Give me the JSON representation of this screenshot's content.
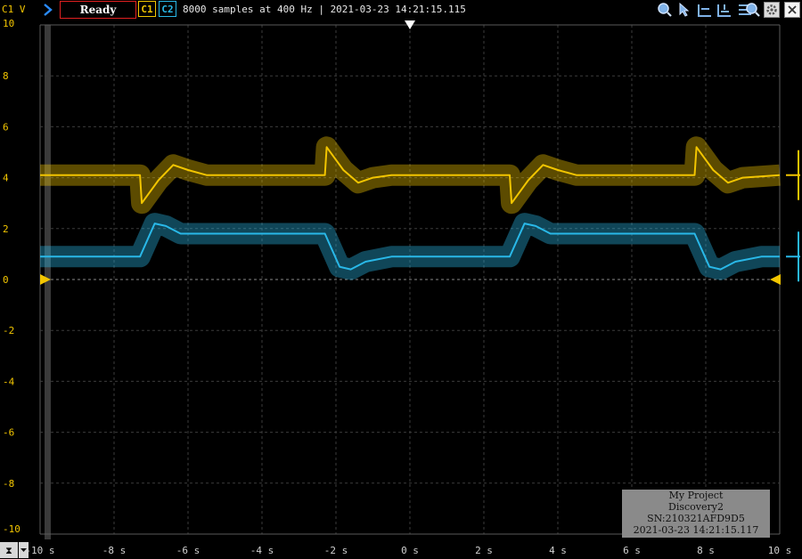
{
  "toolbar": {
    "channel_label": "C1 V",
    "status": "Ready",
    "c1": "C1",
    "c2": "C2",
    "acquisition_info": "8000 samples at 400 Hz | 2021-03-23 14:21:15.115"
  },
  "colors": {
    "c1": "#f2c500",
    "c2": "#29b8e8",
    "grid": "#3c3c3c",
    "status_border": "#e02020"
  },
  "icons": [
    "zoom-icon",
    "cursor-tool-icon",
    "measure-icon",
    "add-measure-icon",
    "list-icon",
    "search-icon",
    "settings-icon",
    "close-icon"
  ],
  "chart_data": {
    "type": "line",
    "x_ticks": [
      "-10 s",
      "-8 s",
      "-6 s",
      "-4 s",
      "-2 s",
      "0 s",
      "2 s",
      "4 s",
      "6 s",
      "8 s",
      "10 s"
    ],
    "y_ticks": [
      "10",
      "8",
      "6",
      "4",
      "2",
      "0",
      "-2",
      "-4",
      "-6",
      "-8",
      "-10"
    ],
    "xlim": [
      -10,
      10
    ],
    "ylim": [
      -10,
      10
    ],
    "grid": true,
    "series": [
      {
        "name": "C1",
        "color": "#f2c500",
        "x": [
          -10,
          -7.3,
          -7.25,
          -6.8,
          -6.4,
          -6.0,
          -5.5,
          -2.3,
          -2.25,
          -1.8,
          -1.4,
          -1.0,
          -0.5,
          2.7,
          2.75,
          3.2,
          3.6,
          4.0,
          4.5,
          7.7,
          7.75,
          8.2,
          8.6,
          9.0,
          10
        ],
        "y": [
          4.1,
          4.1,
          3.0,
          3.9,
          4.5,
          4.3,
          4.1,
          4.1,
          5.2,
          4.3,
          3.8,
          4.0,
          4.1,
          4.1,
          3.0,
          3.9,
          4.5,
          4.3,
          4.1,
          4.1,
          5.2,
          4.3,
          3.8,
          4.0,
          4.1
        ]
      },
      {
        "name": "C2",
        "color": "#29b8e8",
        "x": [
          -10,
          -7.3,
          -6.9,
          -6.6,
          -6.2,
          -5.5,
          -2.3,
          -1.9,
          -1.6,
          -1.2,
          -0.5,
          2.7,
          3.1,
          3.4,
          3.8,
          4.5,
          7.7,
          8.1,
          8.4,
          8.8,
          9.5,
          10
        ],
        "y": [
          0.9,
          0.9,
          2.2,
          2.1,
          1.8,
          1.8,
          1.8,
          0.5,
          0.4,
          0.7,
          0.9,
          0.9,
          2.2,
          2.1,
          1.8,
          1.8,
          1.8,
          0.5,
          0.4,
          0.7,
          0.9,
          0.9
        ]
      }
    ]
  },
  "watermark": {
    "project": "My Project",
    "device": "Discovery2",
    "serial": "SN:210321AFD9D5",
    "timestamp": "2021-03-23 14:21:15.117"
  }
}
